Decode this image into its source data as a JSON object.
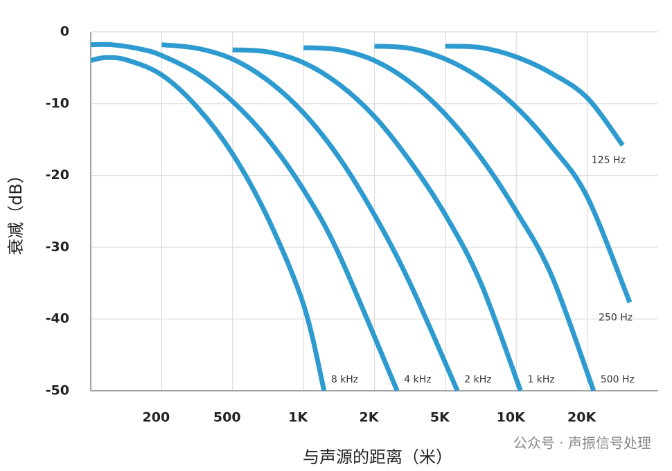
{
  "chart_data": {
    "type": "line",
    "y_label": "衰减（dB）",
    "x_label": "与声源的距离（米）",
    "watermark": "公众号 · 声振信号处理",
    "xlim": [
      0,
      8
    ],
    "xticks": [
      {
        "value": 1,
        "label": "200"
      },
      {
        "value": 2,
        "label": "500"
      },
      {
        "value": 3,
        "label": "1K"
      },
      {
        "value": 4,
        "label": "2K"
      },
      {
        "value": 5,
        "label": "5K"
      },
      {
        "value": 6,
        "label": "10K"
      },
      {
        "value": 7,
        "label": "20K"
      }
    ],
    "ylim": [
      -50,
      0
    ],
    "yticks": [
      0,
      -10,
      -20,
      -30,
      -40,
      -50
    ],
    "grid": true,
    "series": [
      {
        "name": "125 Hz",
        "color": "#2e9bd0",
        "x": [
          5,
          5.5,
          6,
          6.5,
          7,
          7.5
        ],
        "values": [
          -2,
          -2.2,
          -3.5,
          -5.8,
          -9.2,
          -15.8
        ]
      },
      {
        "name": "250 Hz",
        "color": "#2e9bd0",
        "x": [
          4,
          4.5,
          5,
          5.5,
          6,
          6.5,
          7,
          7.6
        ],
        "values": [
          -2,
          -2.3,
          -3.8,
          -6.5,
          -10.5,
          -16,
          -23,
          -37.7
        ]
      },
      {
        "name": "500 Hz",
        "color": "#2e9bd0",
        "x": [
          3,
          3.5,
          4,
          4.5,
          5,
          5.5,
          6,
          6.5,
          7.09
        ],
        "values": [
          -2.2,
          -2.5,
          -4,
          -7,
          -11.5,
          -17.5,
          -25,
          -34,
          -50
        ]
      },
      {
        "name": "1 kHz",
        "color": "#2e9bd0",
        "x": [
          2,
          2.5,
          3,
          3.5,
          4,
          4.5,
          5,
          5.5,
          6.06
        ],
        "values": [
          -2.5,
          -2.8,
          -4.3,
          -7.3,
          -11.8,
          -18,
          -25.5,
          -35,
          -50
        ]
      },
      {
        "name": "2 kHz",
        "color": "#2e9bd0",
        "x": [
          1,
          1.5,
          2,
          2.5,
          3,
          3.5,
          4,
          4.5,
          5.17
        ],
        "values": [
          -1.8,
          -2.3,
          -3.8,
          -6.8,
          -11.3,
          -17.5,
          -25.5,
          -35,
          -50
        ]
      },
      {
        "name": "4 kHz",
        "color": "#2e9bd0",
        "x": [
          0,
          0.3,
          0.7,
          1,
          1.5,
          2,
          2.5,
          3,
          3.5,
          4.32
        ],
        "values": [
          -1.8,
          -1.8,
          -2.4,
          -3.3,
          -5.8,
          -9.7,
          -15,
          -22,
          -31,
          -50
        ]
      },
      {
        "name": "8 kHz",
        "color": "#2e9bd0",
        "x": [
          0,
          0.2,
          0.5,
          1,
          1.5,
          2,
          2.5,
          3,
          3.29
        ],
        "values": [
          -4,
          -3.6,
          -3.9,
          -6,
          -10.5,
          -17,
          -26,
          -38,
          -50
        ]
      }
    ]
  }
}
